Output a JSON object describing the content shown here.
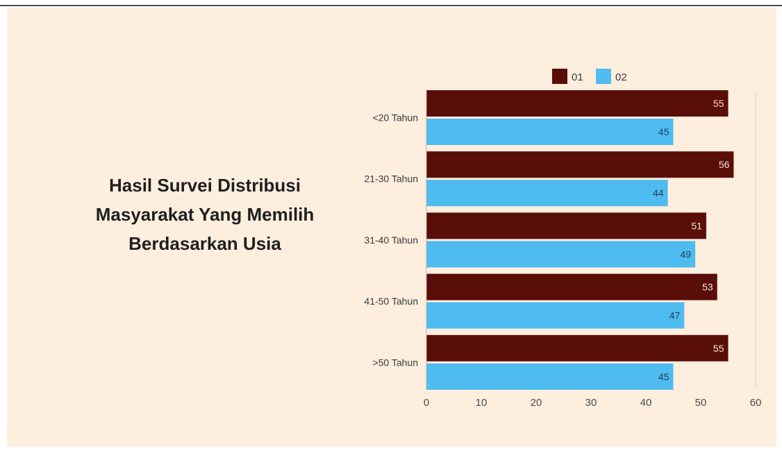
{
  "chart_data": {
    "type": "bar",
    "orientation": "horizontal",
    "title": "Hasil Survei Distribusi Masyarakat Yang Memilih Berdasarkan Usia",
    "title_lines": [
      "Hasil Survei Distribusi",
      "Masyarakat Yang Memilih",
      "Berdasarkan Usia"
    ],
    "categories": [
      "<20 Tahun",
      "21-30 Tahun",
      "31-40 Tahun",
      "41-50 Tahun",
      ">50 Tahun"
    ],
    "series": [
      {
        "name": "01",
        "color": "#5a0e08",
        "values": [
          55,
          56,
          51,
          53,
          55
        ]
      },
      {
        "name": "02",
        "color": "#4ebcf0",
        "values": [
          45,
          44,
          49,
          47,
          45
        ]
      }
    ],
    "xlim": [
      0,
      60
    ],
    "xticks": [
      0,
      10,
      20,
      30,
      40,
      50,
      60
    ],
    "data_labels": true,
    "legend": "top",
    "grid": false
  }
}
